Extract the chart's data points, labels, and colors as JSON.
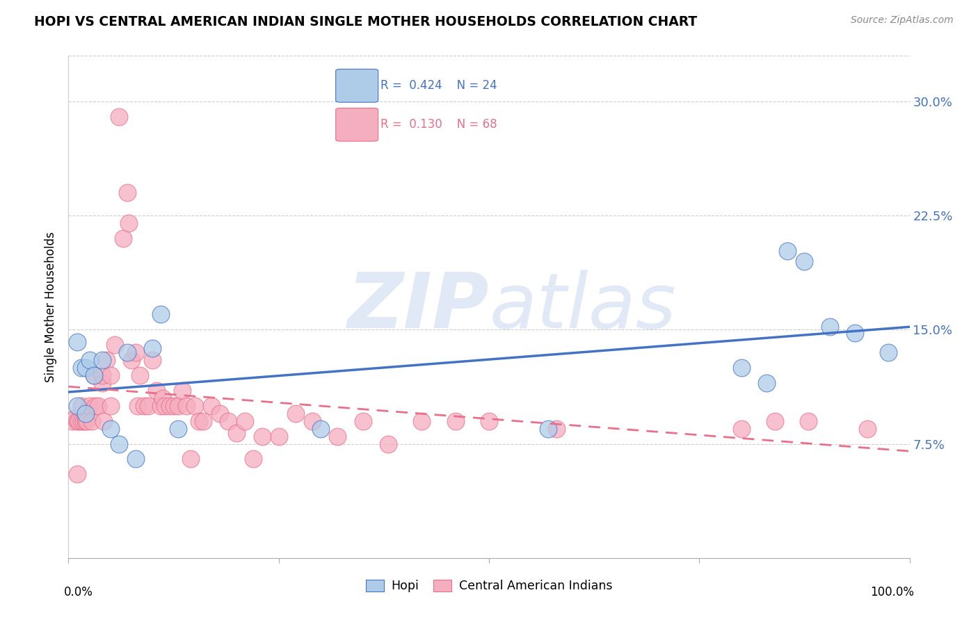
{
  "title": "HOPI VS CENTRAL AMERICAN INDIAN SINGLE MOTHER HOUSEHOLDS CORRELATION CHART",
  "source": "Source: ZipAtlas.com",
  "ylabel": "Single Mother Households",
  "ytick_labels": [
    "",
    "7.5%",
    "15.0%",
    "22.5%",
    "30.0%"
  ],
  "ytick_values": [
    0,
    0.075,
    0.15,
    0.225,
    0.3
  ],
  "xlim": [
    0,
    1.0
  ],
  "ylim": [
    0,
    0.33
  ],
  "watermark_zip": "ZIP",
  "watermark_atlas": "atlas",
  "hopi_R": 0.424,
  "hopi_N": 24,
  "central_R": 0.13,
  "central_N": 68,
  "hopi_color": "#aecce8",
  "central_color": "#f5adc0",
  "hopi_line_color": "#4472c4",
  "central_line_color": "#e8708a",
  "background_color": "#ffffff",
  "hopi_x": [
    0.01,
    0.01,
    0.015,
    0.02,
    0.02,
    0.025,
    0.03,
    0.04,
    0.05,
    0.06,
    0.07,
    0.08,
    0.1,
    0.11,
    0.13,
    0.3,
    0.57,
    0.8,
    0.83,
    0.855,
    0.875,
    0.905,
    0.935,
    0.975
  ],
  "hopi_y": [
    0.1,
    0.142,
    0.125,
    0.095,
    0.125,
    0.13,
    0.12,
    0.13,
    0.085,
    0.075,
    0.135,
    0.065,
    0.138,
    0.16,
    0.085,
    0.085,
    0.085,
    0.125,
    0.115,
    0.202,
    0.195,
    0.152,
    0.148,
    0.135
  ],
  "central_x": [
    0.005,
    0.008,
    0.01,
    0.01,
    0.012,
    0.015,
    0.015,
    0.018,
    0.02,
    0.02,
    0.022,
    0.025,
    0.028,
    0.03,
    0.032,
    0.035,
    0.04,
    0.04,
    0.042,
    0.045,
    0.05,
    0.05,
    0.055,
    0.06,
    0.065,
    0.07,
    0.072,
    0.075,
    0.08,
    0.082,
    0.085,
    0.09,
    0.095,
    0.1,
    0.105,
    0.11,
    0.112,
    0.115,
    0.12,
    0.125,
    0.13,
    0.135,
    0.14,
    0.145,
    0.15,
    0.155,
    0.16,
    0.17,
    0.18,
    0.19,
    0.2,
    0.21,
    0.22,
    0.23,
    0.25,
    0.27,
    0.29,
    0.32,
    0.35,
    0.38,
    0.42,
    0.46,
    0.5,
    0.58,
    0.8,
    0.84,
    0.88,
    0.95
  ],
  "central_y": [
    0.09,
    0.092,
    0.09,
    0.055,
    0.09,
    0.09,
    0.1,
    0.09,
    0.09,
    0.092,
    0.09,
    0.1,
    0.09,
    0.12,
    0.1,
    0.1,
    0.115,
    0.12,
    0.09,
    0.13,
    0.12,
    0.1,
    0.14,
    0.29,
    0.21,
    0.24,
    0.22,
    0.13,
    0.135,
    0.1,
    0.12,
    0.1,
    0.1,
    0.13,
    0.11,
    0.1,
    0.105,
    0.1,
    0.1,
    0.1,
    0.1,
    0.11,
    0.1,
    0.065,
    0.1,
    0.09,
    0.09,
    0.1,
    0.095,
    0.09,
    0.082,
    0.09,
    0.065,
    0.08,
    0.08,
    0.095,
    0.09,
    0.08,
    0.09,
    0.075,
    0.09,
    0.09,
    0.09,
    0.085,
    0.085,
    0.09,
    0.09,
    0.085
  ],
  "hopi_line_start_x": 0.0,
  "hopi_line_end_x": 1.0,
  "central_line_start_x": 0.0,
  "central_line_end_x": 1.0
}
